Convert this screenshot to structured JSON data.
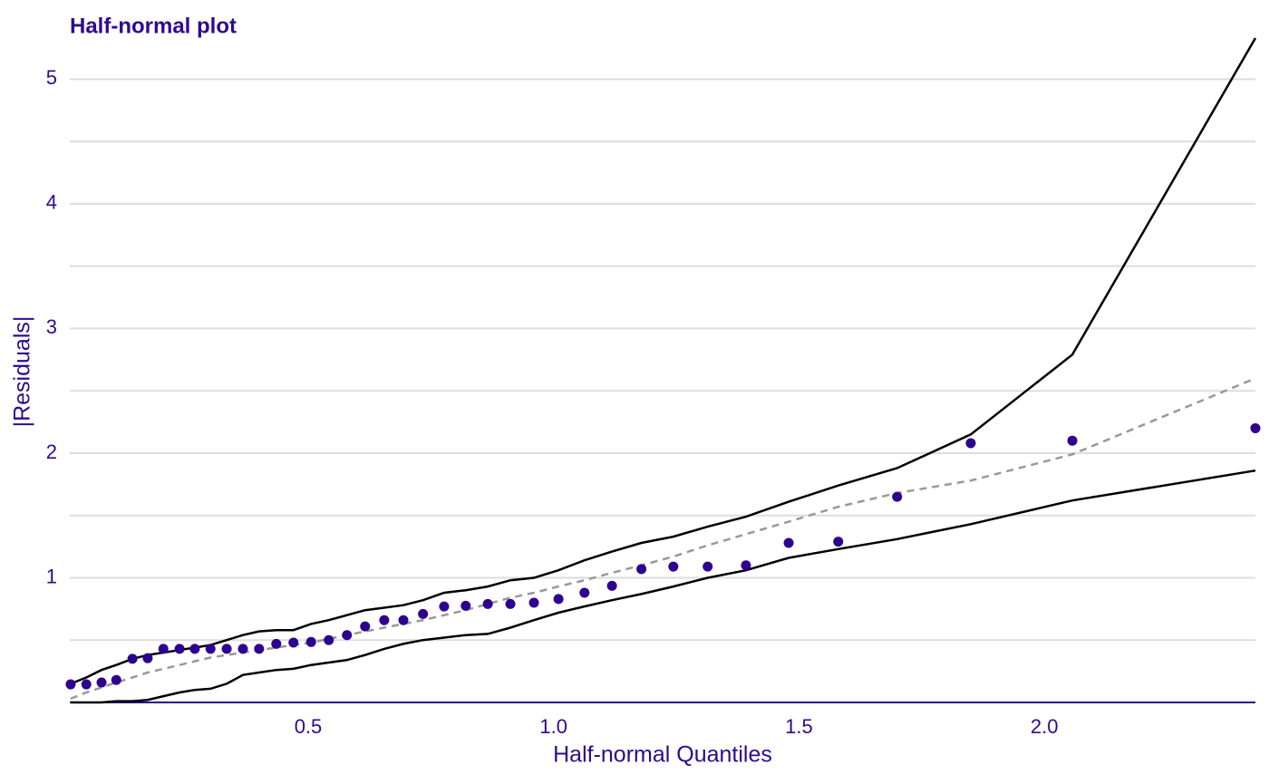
{
  "chart_data": {
    "type": "scatter",
    "title": "Half-normal plot",
    "xlabel": "Half-normal Quantiles",
    "ylabel": "|Residuals|",
    "x": [
      0.016,
      0.048,
      0.079,
      0.109,
      0.142,
      0.173,
      0.205,
      0.238,
      0.269,
      0.301,
      0.334,
      0.367,
      0.4,
      0.435,
      0.47,
      0.506,
      0.542,
      0.579,
      0.616,
      0.655,
      0.694,
      0.734,
      0.777,
      0.821,
      0.866,
      0.912,
      0.96,
      1.01,
      1.063,
      1.119,
      1.179,
      1.244,
      1.314,
      1.392,
      1.479,
      1.58,
      1.7,
      1.85,
      2.057,
      2.43
    ],
    "series": [
      {
        "kind": "line",
        "color": "#000000",
        "dash": false,
        "values": [
          0.15,
          0.2,
          0.26,
          0.3,
          0.35,
          0.38,
          0.4,
          0.42,
          0.44,
          0.46,
          0.5,
          0.54,
          0.57,
          0.58,
          0.58,
          0.63,
          0.66,
          0.7,
          0.74,
          0.76,
          0.78,
          0.82,
          0.88,
          0.9,
          0.93,
          0.98,
          1.0,
          1.06,
          1.14,
          1.21,
          1.28,
          1.33,
          1.41,
          1.49,
          1.61,
          1.74,
          1.88,
          2.15,
          2.79,
          5.33
        ]
      },
      {
        "kind": "line",
        "color": "#000000",
        "dash": false,
        "values": [
          0,
          0,
          0,
          0.01,
          0.01,
          0.02,
          0.05,
          0.08,
          0.1,
          0.11,
          0.15,
          0.22,
          0.24,
          0.26,
          0.27,
          0.3,
          0.32,
          0.34,
          0.38,
          0.43,
          0.47,
          0.5,
          0.52,
          0.54,
          0.55,
          0.6,
          0.66,
          0.72,
          0.77,
          0.82,
          0.87,
          0.93,
          1.0,
          1.06,
          1.16,
          1.23,
          1.31,
          1.43,
          1.62,
          1.86
        ]
      },
      {
        "kind": "line",
        "color": "#999999",
        "dash": true,
        "values": [
          0.03,
          0.08,
          0.12,
          0.16,
          0.2,
          0.24,
          0.27,
          0.3,
          0.33,
          0.36,
          0.38,
          0.4,
          0.42,
          0.44,
          0.46,
          0.48,
          0.51,
          0.54,
          0.57,
          0.6,
          0.63,
          0.66,
          0.7,
          0.74,
          0.79,
          0.84,
          0.88,
          0.93,
          0.98,
          1.04,
          1.1,
          1.17,
          1.26,
          1.35,
          1.45,
          1.57,
          1.68,
          1.78,
          1.99,
          2.6
        ]
      },
      {
        "kind": "points",
        "color": "#2e0090",
        "dash": false,
        "values": [
          0.145,
          0.145,
          0.16,
          0.18,
          0.35,
          0.355,
          0.43,
          0.43,
          0.43,
          0.43,
          0.43,
          0.43,
          0.43,
          0.47,
          0.48,
          0.485,
          0.5,
          0.54,
          0.61,
          0.66,
          0.66,
          0.71,
          0.77,
          0.775,
          0.79,
          0.79,
          0.8,
          0.83,
          0.88,
          0.935,
          1.07,
          1.09,
          1.09,
          1.1,
          1.28,
          1.29,
          1.65,
          2.08,
          2.1,
          2.2
        ]
      }
    ],
    "xlim": [
      0.0143,
      2.43
    ],
    "ylim": [
      0,
      5.33
    ],
    "xticks": [
      0.5,
      {
        "value": 1,
        "label": "1.0"
      },
      1.5,
      {
        "value": 2,
        "label": "2.0"
      }
    ],
    "yticks": [
      1,
      2,
      3,
      4,
      5
    ],
    "yminor_grid": [
      0.5,
      1.5,
      2.5,
      3.5,
      4.5
    ],
    "grid": true,
    "axis_color": "#2e0090"
  }
}
